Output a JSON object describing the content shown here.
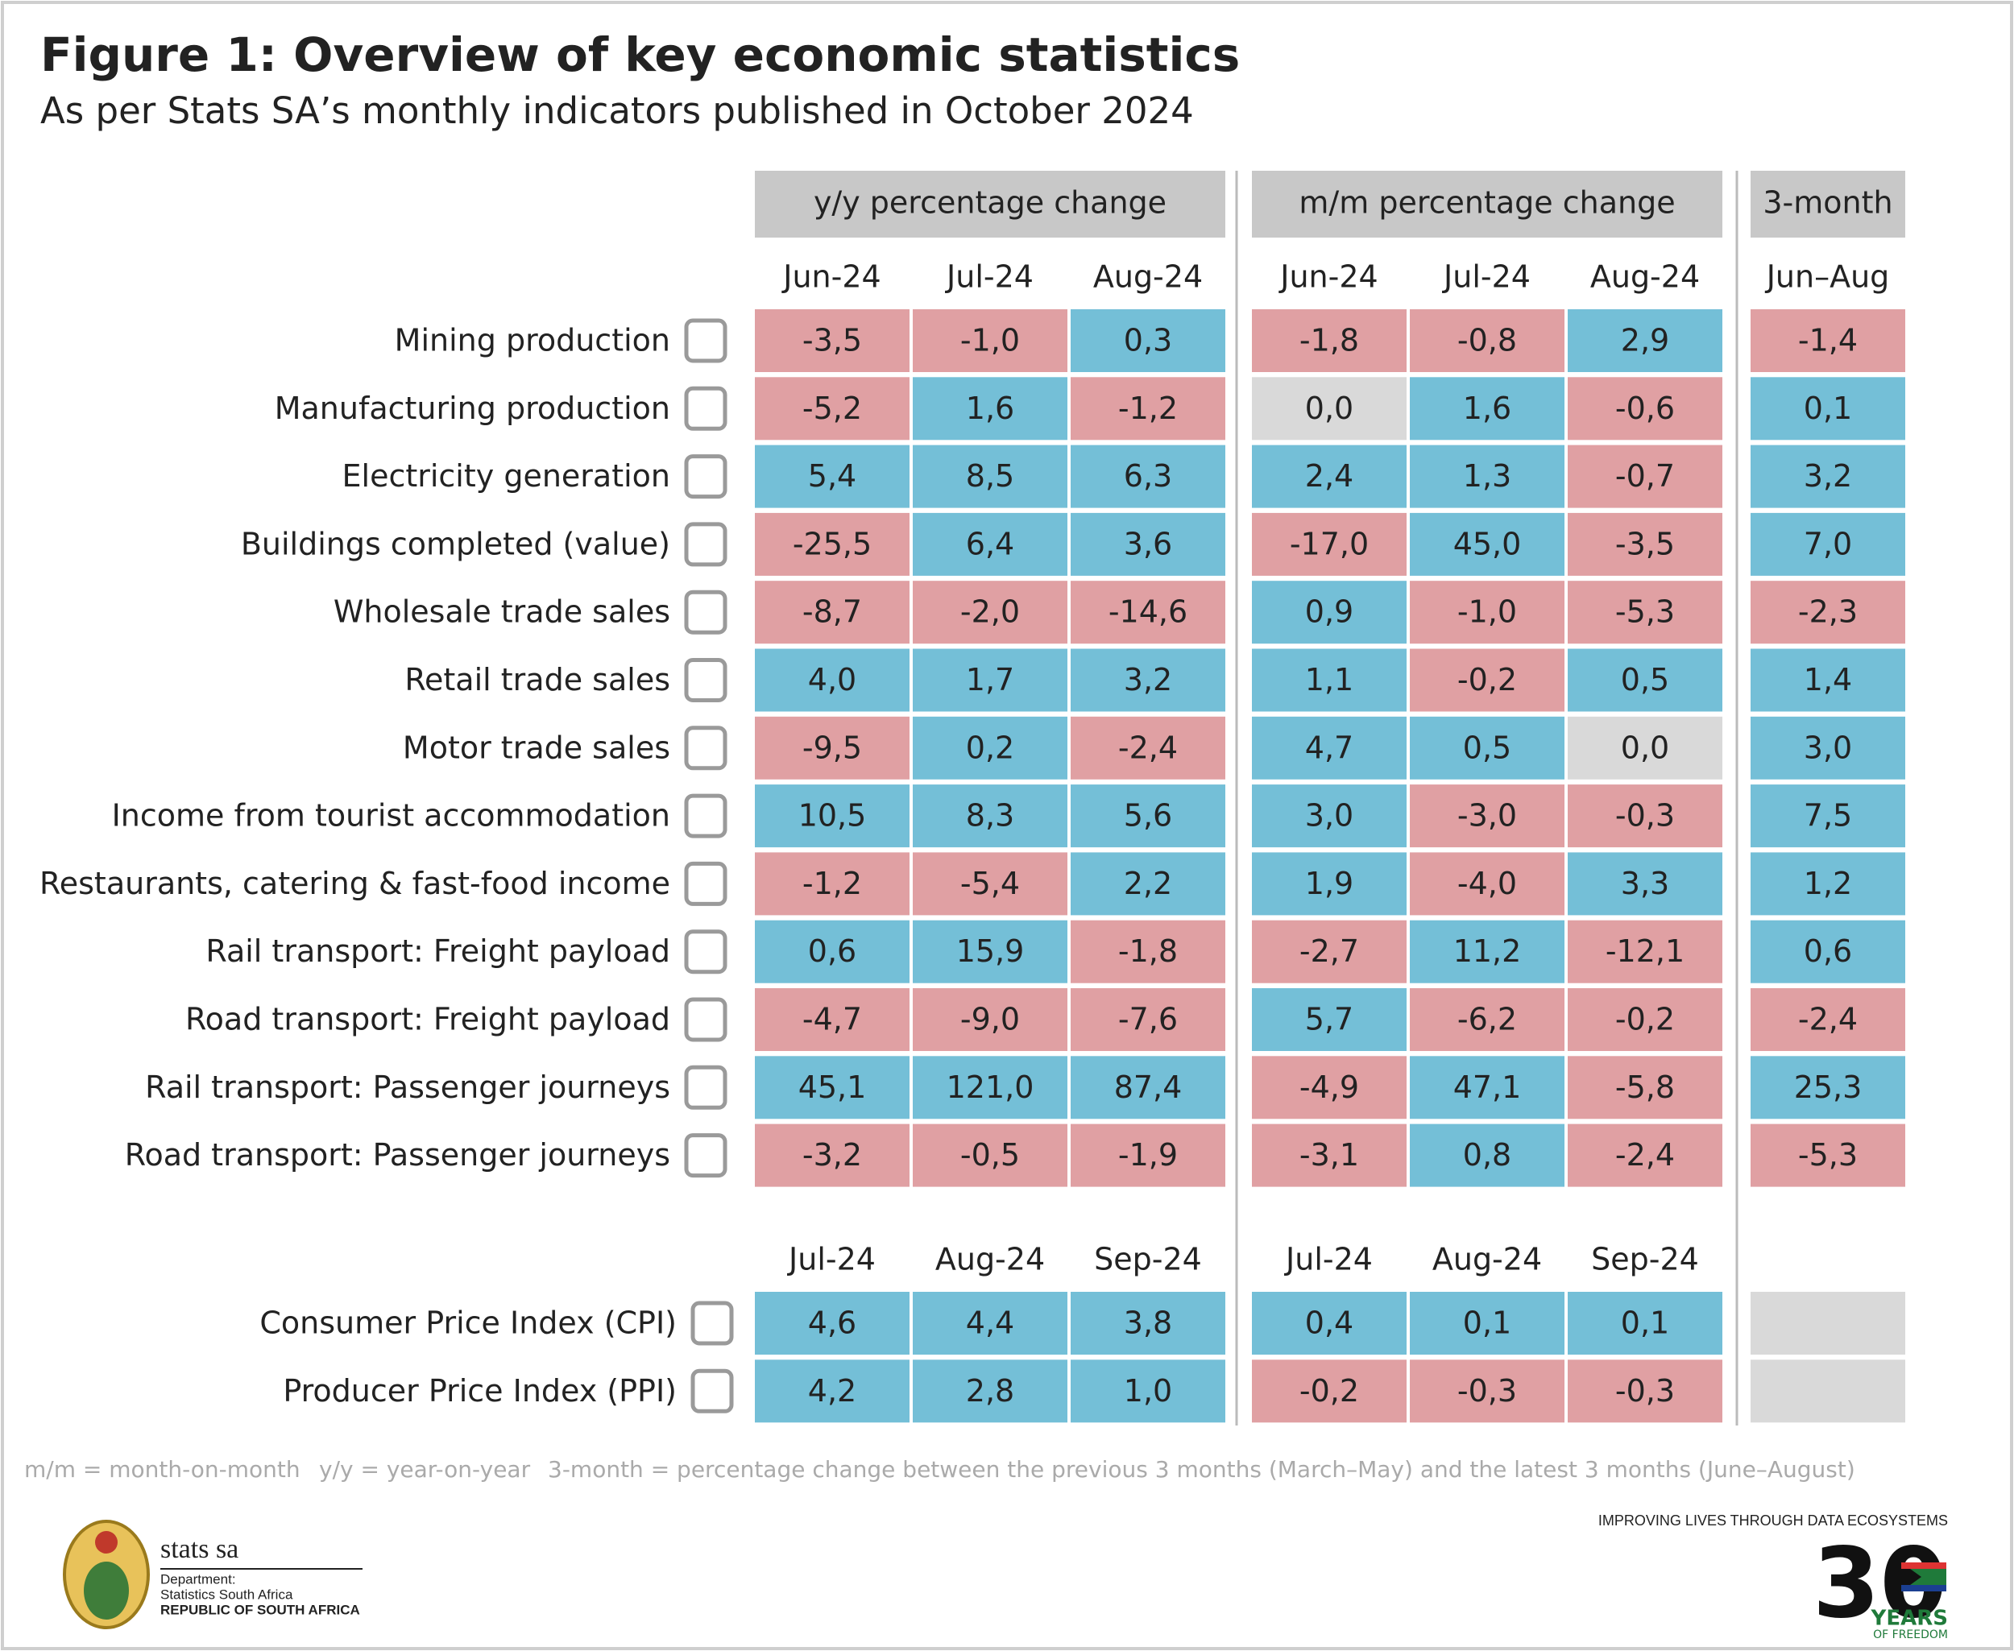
{
  "header": {
    "title": "Figure 1: Overview of key economic statistics",
    "subtitle": "As per Stats SA’s monthly indicators published in October 2024"
  },
  "groups": [
    "y/y percentage change",
    "m/m percentage change",
    "3-month"
  ],
  "section1": {
    "months": [
      "Jun-24",
      "Jul-24",
      "Aug-24",
      "Jun-24",
      "Jul-24",
      "Aug-24",
      "Jun–Aug"
    ],
    "rows": [
      {
        "label": "Mining production",
        "cells": [
          "-3,5",
          "-1,0",
          "0,3",
          "-1,8",
          "-0,8",
          "2,9",
          "-1,4"
        ]
      },
      {
        "label": "Manufacturing production",
        "cells": [
          "-5,2",
          "1,6",
          "-1,2",
          "0,0",
          "1,6",
          "-0,6",
          "0,1"
        ]
      },
      {
        "label": "Electricity generation",
        "cells": [
          "5,4",
          "8,5",
          "6,3",
          "2,4",
          "1,3",
          "-0,7",
          "3,2"
        ]
      },
      {
        "label": "Buildings completed (value)",
        "cells": [
          "-25,5",
          "6,4",
          "3,6",
          "-17,0",
          "45,0",
          "-3,5",
          "7,0"
        ]
      },
      {
        "label": "Wholesale trade sales",
        "cells": [
          "-8,7",
          "-2,0",
          "-14,6",
          "0,9",
          "-1,0",
          "-5,3",
          "-2,3"
        ]
      },
      {
        "label": "Retail trade sales",
        "cells": [
          "4,0",
          "1,7",
          "3,2",
          "1,1",
          "-0,2",
          "0,5",
          "1,4"
        ]
      },
      {
        "label": "Motor trade sales",
        "cells": [
          "-9,5",
          "0,2",
          "-2,4",
          "4,7",
          "0,5",
          "0,0",
          "3,0"
        ]
      },
      {
        "label": "Income from tourist accommodation",
        "cells": [
          "10,5",
          "8,3",
          "5,6",
          "3,0",
          "-3,0",
          "-0,3",
          "7,5"
        ]
      },
      {
        "label": "Restaurants, catering & fast-food income",
        "cells": [
          "-1,2",
          "-5,4",
          "2,2",
          "1,9",
          "-4,0",
          "3,3",
          "1,2"
        ]
      },
      {
        "label": "Rail transport: Freight payload",
        "cells": [
          "0,6",
          "15,9",
          "-1,8",
          "-2,7",
          "11,2",
          "-12,1",
          "0,6"
        ]
      },
      {
        "label": "Road transport: Freight payload",
        "cells": [
          "-4,7",
          "-9,0",
          "-7,6",
          "5,7",
          "-6,2",
          "-0,2",
          "-2,4"
        ]
      },
      {
        "label": "Rail transport: Passenger journeys",
        "cells": [
          "45,1",
          "121,0",
          "87,4",
          "-4,9",
          "47,1",
          "-5,8",
          "25,3"
        ]
      },
      {
        "label": "Road transport: Passenger journeys",
        "cells": [
          "-3,2",
          "-0,5",
          "-1,9",
          "-3,1",
          "0,8",
          "-2,4",
          "-5,3"
        ]
      }
    ]
  },
  "section2": {
    "months": [
      "Jul-24",
      "Aug-24",
      "Sep-24",
      "Jul-24",
      "Aug-24",
      "Sep-24"
    ],
    "rows": [
      {
        "label": "Consumer Price Index (CPI)",
        "cells": [
          "4,6",
          "4,4",
          "3,8",
          "0,4",
          "0,1",
          "0,1"
        ]
      },
      {
        "label": "Producer Price Index (PPI)",
        "cells": [
          "4,2",
          "2,8",
          "1,0",
          "-0,2",
          "-0,3",
          "-0,3"
        ]
      }
    ]
  },
  "footnotes": [
    "m/m = month-on-month",
    "y/y = year-on-year",
    "3-month = percentage change between the previous 3 months (March–May) and the latest 3 months (June–August)"
  ],
  "footer": {
    "brand": "stats sa",
    "dept": "Department:",
    "org": "Statistics South Africa",
    "country": "REPUBLIC OF SOUTH AFRICA",
    "slogan": "IMPROVING LIVES THROUGH DATA ECOSYSTEMS",
    "number": "30",
    "years": "YEARS",
    "freedom": "OF FREEDOM"
  }
}
